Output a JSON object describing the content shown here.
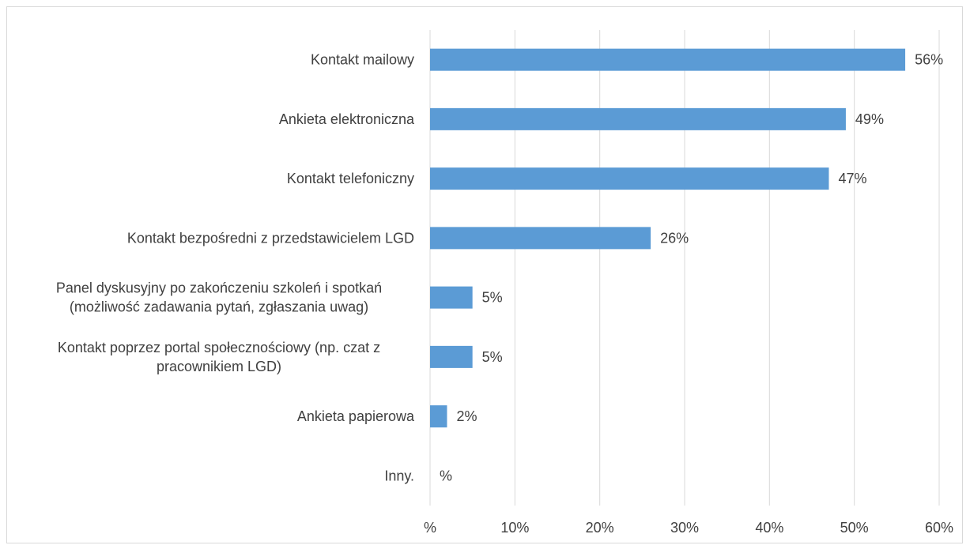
{
  "chart_data": {
    "type": "bar",
    "orientation": "horizontal",
    "categories": [
      [
        "Kontakt mailowy"
      ],
      [
        "Ankieta elektroniczna"
      ],
      [
        "Kontakt telefoniczny"
      ],
      [
        "Kontakt bezpośredni z przedstawicielem LGD"
      ],
      [
        "Panel dyskusyjny po zakończeniu szkoleń i spotkań",
        "(możliwość zadawania pytań, zgłaszania uwag)"
      ],
      [
        "Kontakt poprzez portal społecznościowy (np. czat z",
        "pracownikiem LGD)"
      ],
      [
        "Ankieta papierowa"
      ],
      [
        "Inny."
      ]
    ],
    "values": [
      56,
      49,
      47,
      26,
      5,
      5,
      2,
      0
    ],
    "data_labels": [
      "56%",
      "49%",
      "47%",
      "26%",
      "5%",
      "5%",
      "2%",
      "%"
    ],
    "xlim": [
      0,
      60
    ],
    "ticks": [
      0,
      10,
      20,
      30,
      40,
      50,
      60
    ],
    "tick_labels": [
      "%",
      "10%",
      "20%",
      "30%",
      "40%",
      "50%",
      "60%"
    ],
    "bar_color": "#5b9bd5",
    "grid": true,
    "legend": false
  }
}
